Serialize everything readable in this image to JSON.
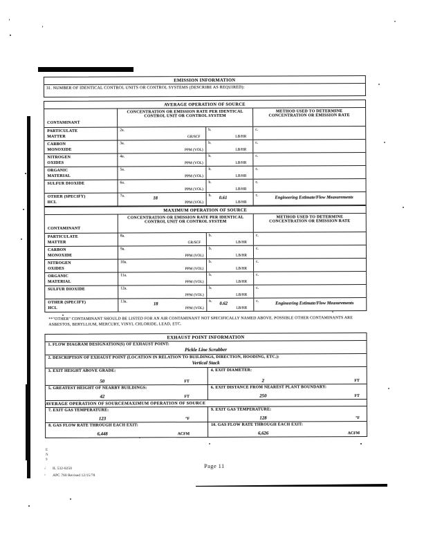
{
  "emission_info": {
    "title": "EMISSION INFORMATION",
    "q31_label": "31. NUMBER OF IDENTICAL CONTROL UNITS OR CONTROL SYSTEMS (DESCRIBE AS REQUIRED):"
  },
  "avg_table": {
    "section_title": "AVERAGE OPERATION OF SOURCE",
    "col_contaminant": "CONTAMINANT",
    "col_concentration": "CONCENTRATION OR EMISSION RATE PER IDENTICAL CONTROL UNIT OR CONTROL SYSTEM",
    "col_method": "METHOD USED TO DETERMINE CONCENTRATION OR EMISSION RATE",
    "rows": [
      {
        "contaminant": "PARTICULATE\nMATTER",
        "a_label": "2a.",
        "a_value": "",
        "a_unit": "GR/SCF",
        "b_label": "b.",
        "b_value": "",
        "b_unit": "LB/HR",
        "c_label": "c.",
        "c_value": ""
      },
      {
        "contaminant": "CARBON\nMONOXIDE",
        "a_label": "3a.",
        "a_value": "",
        "a_unit": "PPM (VOL)",
        "b_label": "b.",
        "b_value": "",
        "b_unit": "LB/HR",
        "c_label": "c.",
        "c_value": ""
      },
      {
        "contaminant": "NITROGEN\nOXIDES",
        "a_label": "4a.",
        "a_value": "",
        "a_unit": "PPM (VOL)",
        "b_label": "b.",
        "b_value": "",
        "b_unit": "LB/HR",
        "c_label": "c.",
        "c_value": ""
      },
      {
        "contaminant": "ORGANIC\nMATERIAL",
        "a_label": "5a.",
        "a_value": "",
        "a_unit": "PPM (VOL)",
        "b_label": "b.",
        "b_value": "",
        "b_unit": "LB/HR",
        "c_label": "c.",
        "c_value": ""
      },
      {
        "contaminant": "SULFUR DIOXIDE",
        "a_label": "6a.",
        "a_value": "",
        "a_unit": "PPM (VOL)",
        "b_label": "b.",
        "b_value": "",
        "b_unit": "LB/HR",
        "c_label": "c.",
        "c_value": ""
      },
      {
        "contaminant": "OTHER (SPECIFY)\nHCL",
        "a_label": "7a.",
        "a_value": "18",
        "a_unit": "PPM (VOL)",
        "b_label": "b.",
        "b_value": "0.61",
        "b_unit": "LB/HR",
        "c_label": "c.",
        "c_value": "Engineering Estimate/Flow Measurements"
      }
    ]
  },
  "max_table": {
    "section_title": "MAXIMUM OPERATION OF SOURCE",
    "col_contaminant": "CONTAMINANT",
    "col_concentration": "CONCENTRATION OR EMISSION RATE PER IDENTICAL CONTROL UNIT OR CONTROL SYSTEM",
    "col_method": "METHOD USED TO DETERMINE CONCENTRATION OR EMISSION RATE",
    "rows": [
      {
        "contaminant": "PARTICULATE\nMATTER",
        "a_label": "8a.",
        "a_value": "",
        "a_unit": "GR/SCF",
        "b_label": "b.",
        "b_value": "",
        "b_unit": "LB/HR",
        "c_label": "c.",
        "c_value": ""
      },
      {
        "contaminant": "CARBON\nMONOXIDE",
        "a_label": "9a.",
        "a_value": "",
        "a_unit": "PPM (VOL)",
        "b_label": "b.",
        "b_value": "",
        "b_unit": "LB/HR",
        "c_label": "c.",
        "c_value": ""
      },
      {
        "contaminant": "NITROGEN\nOXIDES",
        "a_label": "10a.",
        "a_value": "",
        "a_unit": "PPM (VOL)",
        "b_label": "b.",
        "b_value": "",
        "b_unit": "LB/HR",
        "c_label": "c.",
        "c_value": ""
      },
      {
        "contaminant": "ORGANIC\nMATERIAL",
        "a_label": "11a.",
        "a_value": "",
        "a_unit": "PPM (VOL)",
        "b_label": "b.",
        "b_value": "",
        "b_unit": "LB/HR",
        "c_label": "c.",
        "c_value": ""
      },
      {
        "contaminant": "SULFUR DIOXIDE",
        "a_label": "12a.",
        "a_value": "",
        "a_unit": "PPM (VOL)",
        "b_label": "b.",
        "b_value": "",
        "b_unit": "LB/HR",
        "c_label": "c.",
        "c_value": ""
      },
      {
        "contaminant": "OTHER (SPECIFY)\nHCL",
        "a_label": "13a.",
        "a_value": "18",
        "a_unit": "PPM (VOL)",
        "b_label": "b.",
        "b_value": "0.62",
        "b_unit": "LB/HR",
        "c_label": "c.",
        "c_value": "Engineering Estimate/Flow Measurements"
      }
    ]
  },
  "footnote": "**\"OTHER\" CONTAMINANT SHOULD BE LISTED FOR AN AIR CONTAMINANT NOT SPECIFICALLY NAMED ABOVE. POSSIBLE OTHER CONTAMINANTS ARE ASBESTOS, BERYLLIUM, MERCURY, VINYL CHLORIDE, LEAD, ETC.",
  "exhaust": {
    "title": "EXHAUST POINT INFORMATION",
    "q1_label": "1. FLOW DIAGRAM DESIGNATION(S) OF EXHAUST POINT:",
    "q1_value": "Pickle Line Scrubber",
    "q2_label": "2. DESCRIPTION OF EXHAUST POINT (LOCATION IN RELATION TO BUILDINGS, DIRECTION, HOODING, ETC.):",
    "q2_value": "Vertical Stack",
    "q3_label": "3. EXIT HEIGHT ABOVE GRADE:",
    "q3_value": "50",
    "q3_unit": "FT",
    "q4_label": "4. EXIT DIAMETER:",
    "q4_value": "2",
    "q4_unit": "FT",
    "q5_label": "5. GREATEST HEIGHT OF NEARBY BUILDINGS:",
    "q5_value": "42",
    "q5_unit": "FT",
    "q6_label": "6. EXIT DISTANCE FROM NEAREST PLANT BOUNDARY:",
    "q6_value": "250",
    "q6_unit": "FT",
    "avg_header": "AVERAGE OPERATION OF SOURCE",
    "max_header": "MAXIMUM OPERATION OF SOURCE",
    "q7_label": "7. EXIT GAS TEMPERATURE:",
    "q7_value": "123",
    "q7_unit": "°F",
    "q9_label": "9. EXIT GAS TEMPERATURE:",
    "q9_value": "128",
    "q9_unit": "°F",
    "q8_label": "8. GAS FLOW RATE THROUGH EACH EXIT:",
    "q8_value": "6,448",
    "q8_unit": "ACFM",
    "q10_label": "10. GAS FLOW RATE THROUGH EACH EXIT:",
    "q10_value": "6,626",
    "q10_unit": "ACFM"
  },
  "footer": {
    "form_id": "IL 532-0250",
    "form_rev": "APC 760 Revised 12/15/78",
    "page_number": "Page 11",
    "margin_marks": "E\nN\n9"
  }
}
